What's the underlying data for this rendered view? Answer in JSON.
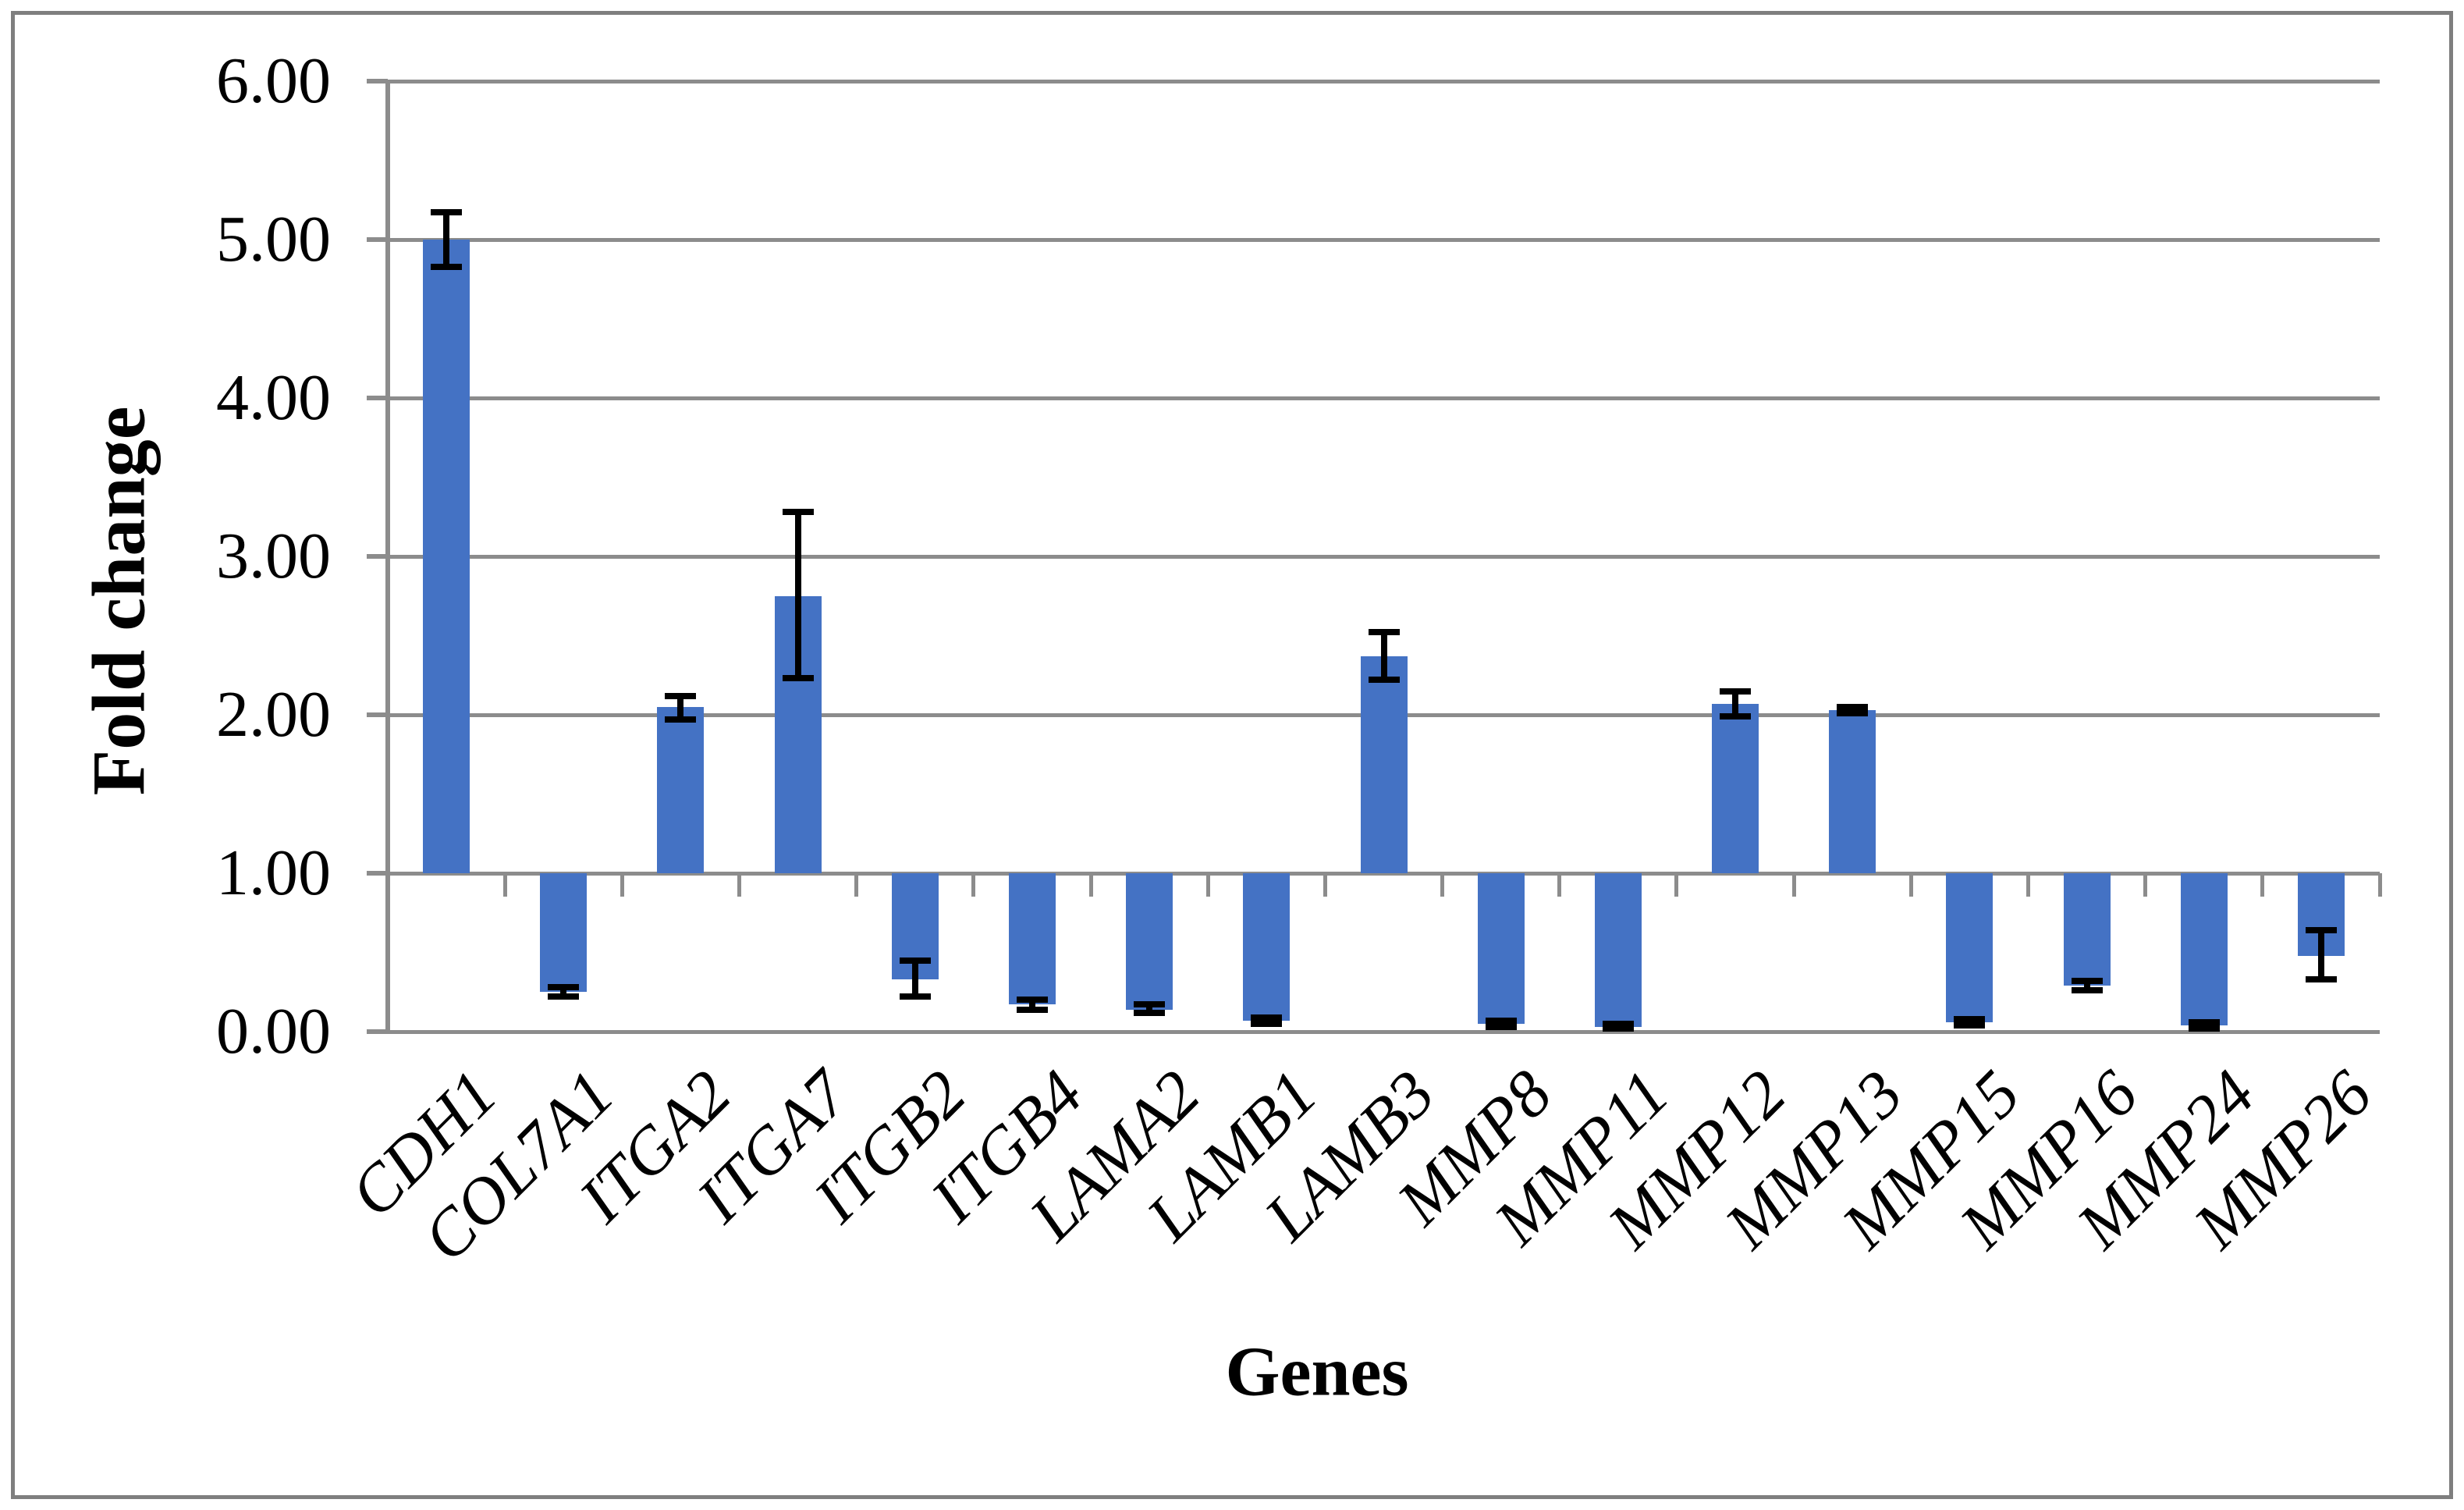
{
  "figure": {
    "background": "#ffffff",
    "border_color": "#7f7f7f"
  },
  "chart_data": {
    "type": "bar",
    "title": "",
    "xlabel": "Genes",
    "ylabel": "Fold change",
    "categories": [
      "CDH1",
      "COL7A1",
      "ITGA2",
      "ITGA7",
      "ITGB2",
      "ITGB4",
      "LAMA2",
      "LAMB1",
      "LAMB3",
      "MMP8",
      "MMP11",
      "MMP12",
      "MMP13",
      "MMP15",
      "MMP16",
      "MMP24",
      "MMP26"
    ],
    "values": [
      5.0,
      0.25,
      2.05,
      2.75,
      0.33,
      0.17,
      0.14,
      0.07,
      2.37,
      0.05,
      0.03,
      2.07,
      2.03,
      0.06,
      0.29,
      0.04,
      0.48
    ],
    "error_low": [
      4.83,
      0.22,
      1.97,
      2.23,
      0.22,
      0.14,
      0.12,
      0.05,
      2.22,
      0.03,
      0.02,
      1.99,
      2.01,
      0.04,
      0.26,
      0.02,
      0.33
    ],
    "error_high": [
      5.17,
      0.28,
      2.12,
      3.28,
      0.45,
      0.2,
      0.17,
      0.09,
      2.52,
      0.07,
      0.05,
      2.15,
      2.05,
      0.08,
      0.32,
      0.06,
      0.64
    ],
    "baseline": 1.0,
    "ylim": [
      0,
      6
    ],
    "ytick_values": [
      0,
      1,
      2,
      3,
      4,
      5,
      6
    ],
    "ytick_labels": [
      "0.00",
      "1.00",
      "2.00",
      "3.00",
      "4.00",
      "5.00",
      "6.00"
    ],
    "grid": "horizontal",
    "legend": "none",
    "bar_color": "#4472c4",
    "error_color": "#000000",
    "axis_color": "#8c8c8c"
  }
}
